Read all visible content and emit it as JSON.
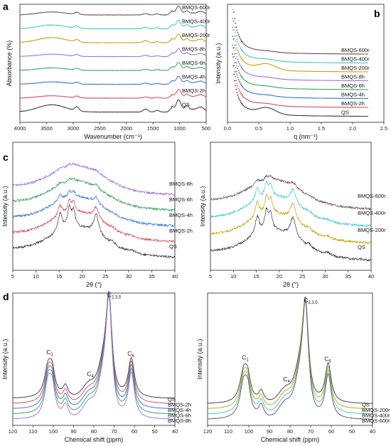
{
  "figure": {
    "panel_letters": [
      "a",
      "b",
      "c",
      "d"
    ]
  },
  "colors": {
    "BMQS-600r": "#6b4a57",
    "BMQS-400r": "#3ec6cc",
    "BMQS-200r": "#c9a000",
    "BMQS-8h": "#a070d8",
    "BMQS-6h": "#3aa362",
    "BMQS-4h": "#3a6fd8",
    "BMQS-2h": "#d64d5a",
    "QS": "#3a3a3a"
  },
  "chart_data": [
    {
      "id": "a",
      "type": "line",
      "xlabel": "Wavenumber (cm⁻¹)",
      "ylabel": "Absorbance (%)",
      "xlim": [
        4000,
        500
      ],
      "xticks": [
        4000,
        3500,
        3000,
        2500,
        2000,
        1500,
        1000,
        500
      ],
      "series_order_top_to_bottom": [
        "BMQS-600r",
        "BMQS-400r",
        "BMQS-200r",
        "BMQS-8h",
        "BMQS-6h",
        "BMQS-4h",
        "BMQS-2h",
        "QS"
      ],
      "series_labels": [
        "BMQS-600r",
        "BMQS-400r",
        "BMQS-200r",
        "BMQS-8h",
        "BMQS-6h",
        "BMQS-4h",
        "BMQS-2h",
        "QS"
      ],
      "offset_step": 1,
      "peaks": [
        {
          "x": 3400,
          "width": 260,
          "amp": [
            0.35,
            0.45,
            0.6,
            0.28,
            0.3,
            0.28,
            0.28,
            0.85
          ]
        },
        {
          "x": 2930,
          "width": 40,
          "amp": [
            0.25,
            0.25,
            0.25,
            0.2,
            0.2,
            0.2,
            0.2,
            0.45
          ]
        },
        {
          "x": 1640,
          "width": 45,
          "amp": [
            0.15,
            0.2,
            0.25,
            0.15,
            0.15,
            0.15,
            0.15,
            0.35
          ]
        },
        {
          "x": 1420,
          "width": 40,
          "amp": [
            0.12,
            0.12,
            0.12,
            0.1,
            0.1,
            0.1,
            0.1,
            0.2
          ]
        },
        {
          "x": 1150,
          "width": 35,
          "amp": [
            0.35,
            0.35,
            0.35,
            0.3,
            0.3,
            0.3,
            0.3,
            0.45
          ]
        },
        {
          "x": 1020,
          "width": 40,
          "amp": [
            0.8,
            0.8,
            0.8,
            0.7,
            0.7,
            0.7,
            0.8,
            1.1
          ]
        },
        {
          "x": 860,
          "width": 30,
          "amp": [
            0.25,
            0.25,
            0.25,
            0.2,
            0.2,
            0.2,
            0.25,
            0.4
          ]
        },
        {
          "x": 600,
          "width": 60,
          "amp": [
            0.3,
            0.3,
            0.3,
            0.25,
            0.25,
            0.25,
            0.3,
            0.4
          ]
        }
      ]
    },
    {
      "id": "b",
      "type": "line",
      "xlabel": "q (nm⁻¹)",
      "ylabel": "Intensity (a.u.)",
      "xlim": [
        0.0,
        2.5
      ],
      "xticks": [
        0.0,
        0.5,
        1.0,
        1.5,
        2.0,
        2.5
      ],
      "series_order_top_to_bottom": [
        "BMQS-600r",
        "BMQS-400r",
        "BMQS-200r",
        "BMQS-8h",
        "BMQS-6h",
        "BMQS-4h",
        "BMQS-2h",
        "QS"
      ],
      "series_labels": [
        "BMQS-600r",
        "BMQS-400r",
        "BMQS-200r",
        "BMQS-8h",
        "BMQS-6h",
        "BMQS-4h",
        "BMQS-2h",
        "QS"
      ],
      "x_end": 2.25,
      "offset_step": 1,
      "peak_q": 0.63,
      "peak_amp": [
        0.15,
        0.25,
        0.9,
        0.2,
        0.2,
        0.2,
        0.25,
        1.0
      ]
    },
    {
      "id": "c-left",
      "type": "line",
      "xlabel": "2θ (°)",
      "ylabel": "Intensity (a.u.)",
      "xlim": [
        5,
        40
      ],
      "xticks": [
        5,
        10,
        15,
        20,
        25,
        30,
        35,
        40
      ],
      "series_order_top_to_bottom": [
        "BMQS-8h",
        "BMQS-6h",
        "BMQS-4h",
        "BMQS-2h",
        "QS"
      ],
      "series_labels": [
        "BMQS-8h",
        "BMQS-6h",
        "BMQS-4h",
        "BMQS-2h",
        "QS"
      ],
      "offset_step": 1,
      "crystallinity": [
        0.1,
        0.15,
        0.3,
        0.6,
        1.0
      ]
    },
    {
      "id": "c-right",
      "type": "line",
      "xlabel": "2θ (°)",
      "ylabel": "Intensity (a.u.)",
      "xlim": [
        5,
        40
      ],
      "xticks": [
        5,
        10,
        15,
        20,
        25,
        30,
        35,
        40
      ],
      "series_order_top_to_bottom": [
        "BMQS-600r",
        "BMQS-400r",
        "BMQS-200r",
        "QS"
      ],
      "series_labels": [
        "BMQS-600r",
        "BMQS-400r",
        "BMQS-200r",
        "QS"
      ],
      "offset_step": 1,
      "crystallinity": [
        0.2,
        0.7,
        0.85,
        1.0
      ]
    },
    {
      "id": "d-left",
      "type": "line",
      "xlabel": "Chemical shift (ppm)",
      "ylabel": "Intensity (a.u.)",
      "xlim": [
        120,
        40
      ],
      "xticks": [
        120,
        110,
        100,
        90,
        80,
        70,
        60,
        50,
        40
      ],
      "series_order_top_to_bottom": [
        "QS",
        "BMQS-2h",
        "BMQS-4h",
        "BMQS-6h",
        "BMQS-8h"
      ],
      "series_labels": [
        "QS",
        "BMQS-2h",
        "BMQS-4h",
        "BMQS-6h",
        "BMQS-8h"
      ],
      "offset_step": 1,
      "peak_labels": [
        {
          "text": "C",
          "sub": "1",
          "x": 102
        },
        {
          "text": "C",
          "sub": "4",
          "x": 82
        },
        {
          "text": "C",
          "sub": "2,3,5",
          "x": 72
        },
        {
          "text": "C",
          "sub": "6",
          "x": 62
        }
      ]
    },
    {
      "id": "d-right",
      "type": "line",
      "xlabel": "Chemical shift (ppm)",
      "ylabel": "Intensity (a.u.)",
      "xlim": [
        120,
        40
      ],
      "xticks": [
        120,
        110,
        100,
        90,
        80,
        70,
        60,
        50,
        40
      ],
      "series_order_top_to_bottom": [
        "QS",
        "BMQS-200r",
        "BMQS-400r",
        "BMQS-600r"
      ],
      "series_labels": [
        "QS",
        "BMQS-200r",
        "BMQS-400r",
        "BMQS-600r"
      ],
      "offset_step": 1,
      "peak_labels": [
        {
          "text": "C",
          "sub": "1",
          "x": 102
        },
        {
          "text": "C",
          "sub": "4",
          "x": 82
        },
        {
          "text": "C",
          "sub": "2,3,5",
          "x": 72
        },
        {
          "text": "C",
          "sub": "6",
          "x": 62
        }
      ]
    }
  ]
}
